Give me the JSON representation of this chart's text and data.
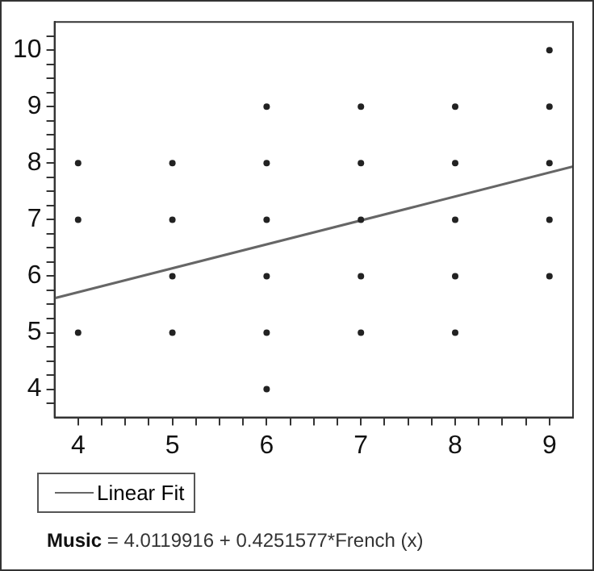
{
  "chart_data": {
    "type": "scatter",
    "xlim": [
      3.75,
      9.25
    ],
    "ylim": [
      3.5,
      10.5
    ],
    "xticks": [
      4,
      {
        "value": 4.25,
        "label": null
      },
      {
        "value": 4.5,
        "label": null
      },
      {
        "value": 4.75,
        "label": null
      },
      5,
      {
        "value": 5.25,
        "label": null
      },
      {
        "value": 5.5,
        "label": null
      },
      {
        "value": 5.75,
        "label": null
      },
      6,
      {
        "value": 6.25,
        "label": null
      },
      {
        "value": 6.5,
        "label": null
      },
      {
        "value": 6.75,
        "label": null
      },
      7,
      {
        "value": 7.25,
        "label": null
      },
      {
        "value": 7.5,
        "label": null
      },
      {
        "value": 7.75,
        "label": null
      },
      8,
      {
        "value": 8.25,
        "label": null
      },
      {
        "value": 8.5,
        "label": null
      },
      {
        "value": 8.75,
        "label": null
      },
      9
    ],
    "yticks": [
      {
        "value": 3.75,
        "label": null
      },
      4,
      {
        "value": 4.25,
        "label": null
      },
      {
        "value": 4.5,
        "label": null
      },
      {
        "value": 4.75,
        "label": null
      },
      5,
      {
        "value": 5.25,
        "label": null
      },
      {
        "value": 5.5,
        "label": null
      },
      {
        "value": 5.75,
        "label": null
      },
      6,
      {
        "value": 6.25,
        "label": null
      },
      {
        "value": 6.5,
        "label": null
      },
      {
        "value": 6.75,
        "label": null
      },
      7,
      {
        "value": 7.25,
        "label": null
      },
      {
        "value": 7.5,
        "label": null
      },
      {
        "value": 7.75,
        "label": null
      },
      8,
      {
        "value": 8.25,
        "label": null
      },
      {
        "value": 8.5,
        "label": null
      },
      {
        "value": 8.75,
        "label": null
      },
      9,
      {
        "value": 9.25,
        "label": null
      },
      {
        "value": 9.5,
        "label": null
      },
      {
        "value": 9.75,
        "label": null
      },
      10,
      {
        "value": 10.25,
        "label": null
      }
    ],
    "grid": false,
    "legend": "bottom left",
    "marker": "circle",
    "series": [
      {
        "color": "#222222",
        "x": [
          4,
          4,
          4,
          5,
          5,
          5,
          5,
          6,
          6,
          6,
          6,
          6,
          6,
          7,
          7,
          7,
          7,
          7,
          8,
          8,
          8,
          8,
          8,
          9,
          9,
          9,
          9,
          9
        ],
        "values": [
          5,
          7,
          8,
          5,
          6,
          7,
          8,
          4,
          5,
          6,
          7,
          8,
          9,
          5,
          6,
          7,
          8,
          9,
          5,
          6,
          7,
          8,
          9,
          6,
          7,
          8,
          9,
          10
        ]
      },
      {
        "type": "line",
        "name": "Linear Fit",
        "color": "#666666",
        "marker": "none",
        "x": [
          3.75,
          9.25
        ],
        "values": [
          5.61,
          7.94
        ]
      }
    ],
    "annotations": [
      "Music = 4.0119916 + 0.4251577*French (x)"
    ]
  }
}
